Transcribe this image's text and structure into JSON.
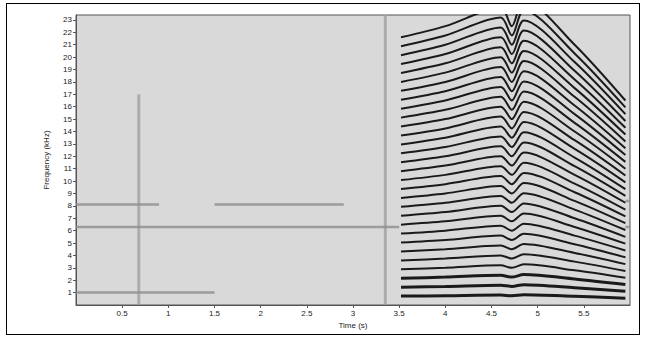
{
  "chart_data": {
    "type": "spectrogram",
    "xlabel": "Time (s)",
    "ylabel": "Frequency (kHz)",
    "xlim": [
      0,
      6
    ],
    "ylim": [
      0,
      23.4
    ],
    "xticks": [
      0.5,
      1,
      1.5,
      2,
      2.5,
      3,
      3.5,
      4,
      4.5,
      5,
      5.5
    ],
    "yticks": [
      1,
      2,
      3,
      4,
      5,
      6,
      7,
      8,
      9,
      10,
      11,
      12,
      13,
      14,
      15,
      16,
      17,
      18,
      19,
      20,
      21,
      22,
      23
    ],
    "grid": false,
    "harmonics": {
      "color": "#1a1a1a",
      "x": [
        3.52,
        4.0,
        4.6,
        4.72,
        4.85,
        5.4,
        5.95
      ],
      "values": [
        [
          0.72,
          0.75,
          0.8,
          0.75,
          0.82,
          0.7,
          0.55
        ],
        [
          1.44,
          1.5,
          1.6,
          1.5,
          1.64,
          1.4,
          1.1
        ],
        [
          2.16,
          2.25,
          2.4,
          2.25,
          2.46,
          2.1,
          1.65
        ],
        [
          2.88,
          3,
          3.2,
          3,
          3.28,
          2.8,
          2.2
        ],
        [
          3.6,
          3.75,
          4,
          3.75,
          4.1,
          3.5,
          2.75
        ],
        [
          4.32,
          4.5,
          4.8,
          4.5,
          4.92,
          4.2,
          3.3
        ],
        [
          5.04,
          5.25,
          5.6,
          5.25,
          5.74,
          4.9,
          3.85
        ],
        [
          5.76,
          6,
          6.4,
          6,
          6.56,
          5.6,
          4.4
        ],
        [
          6.48,
          6.75,
          7.2,
          6.75,
          7.38,
          6.3,
          4.95
        ],
        [
          7.2,
          7.5,
          8,
          7.5,
          8.2,
          7,
          5.5
        ],
        [
          7.92,
          8.25,
          8.8,
          8.25,
          9.02,
          7.7,
          6.05
        ],
        [
          8.64,
          9,
          9.6,
          9,
          9.84,
          8.4,
          6.6
        ],
        [
          9.36,
          9.75,
          10.4,
          9.75,
          10.66,
          9.1,
          7.15
        ],
        [
          10.08,
          10.5,
          11.2,
          10.5,
          11.48,
          9.8,
          7.7
        ],
        [
          10.8,
          11.25,
          12,
          11.25,
          12.3,
          10.5,
          8.25
        ],
        [
          11.52,
          12,
          12.8,
          12,
          13.12,
          11.2,
          8.8
        ],
        [
          12.24,
          12.75,
          13.6,
          12.75,
          13.94,
          11.9,
          9.35
        ],
        [
          12.96,
          13.5,
          14.4,
          13.5,
          14.76,
          12.6,
          9.9
        ],
        [
          13.68,
          14.25,
          15.2,
          14.25,
          15.58,
          13.3,
          10.45
        ],
        [
          14.4,
          15,
          16,
          15,
          16.4,
          14,
          11
        ],
        [
          15.12,
          15.75,
          16.8,
          15.75,
          17.22,
          14.7,
          11.55
        ],
        [
          15.84,
          16.5,
          17.6,
          16.5,
          18.04,
          15.4,
          12.1
        ],
        [
          16.56,
          17.25,
          18.4,
          17.25,
          18.86,
          16.1,
          12.65
        ],
        [
          17.28,
          18,
          19.2,
          18,
          19.68,
          16.8,
          13.2
        ],
        [
          18,
          18.75,
          20,
          18.75,
          20.5,
          17.5,
          13.75
        ],
        [
          18.72,
          19.5,
          20.8,
          19.5,
          21.32,
          18.2,
          14.3
        ],
        [
          19.44,
          20.25,
          21.6,
          20.25,
          22.14,
          18.9,
          14.85
        ],
        [
          20.16,
          21,
          22.4,
          21,
          22.96,
          19.6,
          15.4
        ],
        [
          20.88,
          21.75,
          23.2,
          21.75,
          23.78,
          20.3,
          15.95
        ],
        [
          21.6,
          22.5,
          24,
          22.5,
          24.6,
          21,
          16.5
        ]
      ]
    },
    "bands": {
      "color": "#8c8c8c",
      "lines": [
        {
          "x": [
            0,
            1.5
          ],
          "values": [
            1.0,
            1.0
          ]
        },
        {
          "x": [
            0,
            3.5
          ],
          "values": [
            6.3,
            6.3
          ]
        },
        {
          "x": [
            5.95,
            6
          ],
          "values": [
            6.3,
            6.3
          ]
        },
        {
          "x": [
            0,
            0.9
          ],
          "values": [
            8.1,
            8.1
          ]
        },
        {
          "x": [
            1.5,
            2.9
          ],
          "values": [
            8.1,
            8.1
          ]
        },
        {
          "x": [
            5.95,
            6
          ],
          "values": [
            8.4,
            8.4
          ]
        }
      ]
    },
    "clicks": {
      "color": "#a0a0a0",
      "lines": [
        {
          "x": [
            0.68,
            0.68
          ],
          "values": [
            0,
            17
          ]
        },
        {
          "x": [
            3.35,
            3.35
          ],
          "values": [
            0,
            23.4
          ]
        }
      ]
    }
  }
}
